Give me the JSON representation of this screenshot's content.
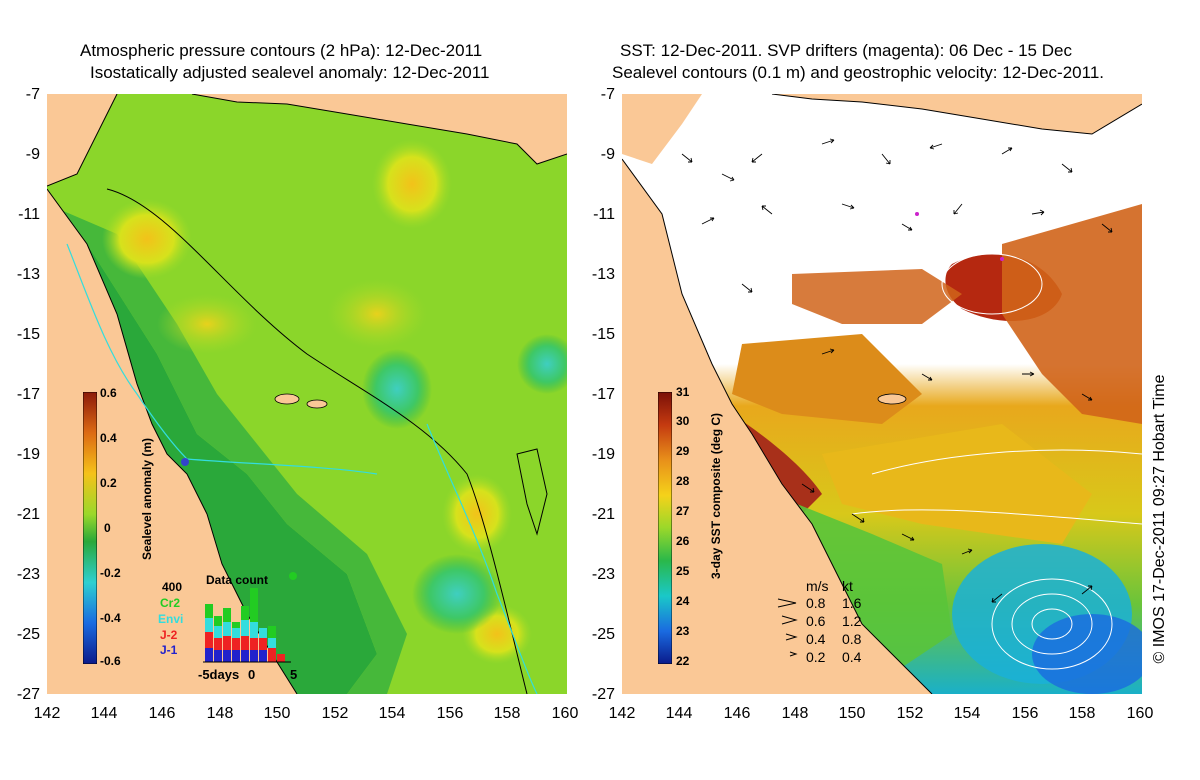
{
  "left_panel": {
    "title_line1": "Atmospheric pressure contours (2 hPa): 12-Dec-2011",
    "title_line2": "Isostatically adjusted sealevel anomaly: 12-Dec-2011",
    "y_ticks": [
      "-7",
      "-9",
      "-11",
      "-13",
      "-15",
      "-17",
      "-19",
      "-21",
      "-23",
      "-25",
      "-27"
    ],
    "x_ticks": [
      "142",
      "144",
      "146",
      "148",
      "150",
      "152",
      "154",
      "156",
      "158",
      "160"
    ],
    "colorbar_label": "Sealevel anomaly (m)",
    "colorbar_ticks": [
      "0.6",
      "0.4",
      "0.2",
      "0",
      "-0.2",
      "-0.4",
      "-0.6"
    ],
    "data_count": {
      "title": "Data count",
      "max_label": "400",
      "series": [
        {
          "name": "Cr2",
          "color": "#22cc22"
        },
        {
          "name": "Envi",
          "color": "#33dddd"
        },
        {
          "name": "J-2",
          "color": "#ee2222"
        },
        {
          "name": "J-1",
          "color": "#2222cc"
        }
      ],
      "x_label_left": "-5days",
      "x_label_mid": "0",
      "x_label_right": "5"
    }
  },
  "right_panel": {
    "title_line1": "SST: 12-Dec-2011. SVP drifters (magenta): 06 Dec - 15 Dec",
    "title_line2": "Sealevel contours (0.1 m) and geostrophic velocity: 12-Dec-2011.",
    "y_ticks": [
      "-7",
      "-9",
      "-11",
      "-13",
      "-15",
      "-17",
      "-19",
      "-21",
      "-23",
      "-25",
      "-27"
    ],
    "x_ticks": [
      "142",
      "144",
      "146",
      "148",
      "150",
      "152",
      "154",
      "156",
      "158",
      "160"
    ],
    "colorbar_label": "3-day SST composite (deg C)",
    "colorbar_ticks": [
      "31",
      "30",
      "29",
      "28",
      "27",
      "26",
      "25",
      "24",
      "23",
      "22"
    ],
    "velocity_legend": {
      "header_ms": "m/s",
      "header_kt": "kt",
      "rows": [
        {
          "ms": "0.8",
          "kt": "1.6"
        },
        {
          "ms": "0.6",
          "kt": "1.2"
        },
        {
          "ms": "0.4",
          "kt": "0.8"
        },
        {
          "ms": "0.2",
          "kt": "0.4"
        }
      ]
    },
    "copyright": "© IMOS 17-Dec-2011 09:27 Hobart Time"
  },
  "colors": {
    "land": "#fac896",
    "no_data": "#ffffff"
  }
}
